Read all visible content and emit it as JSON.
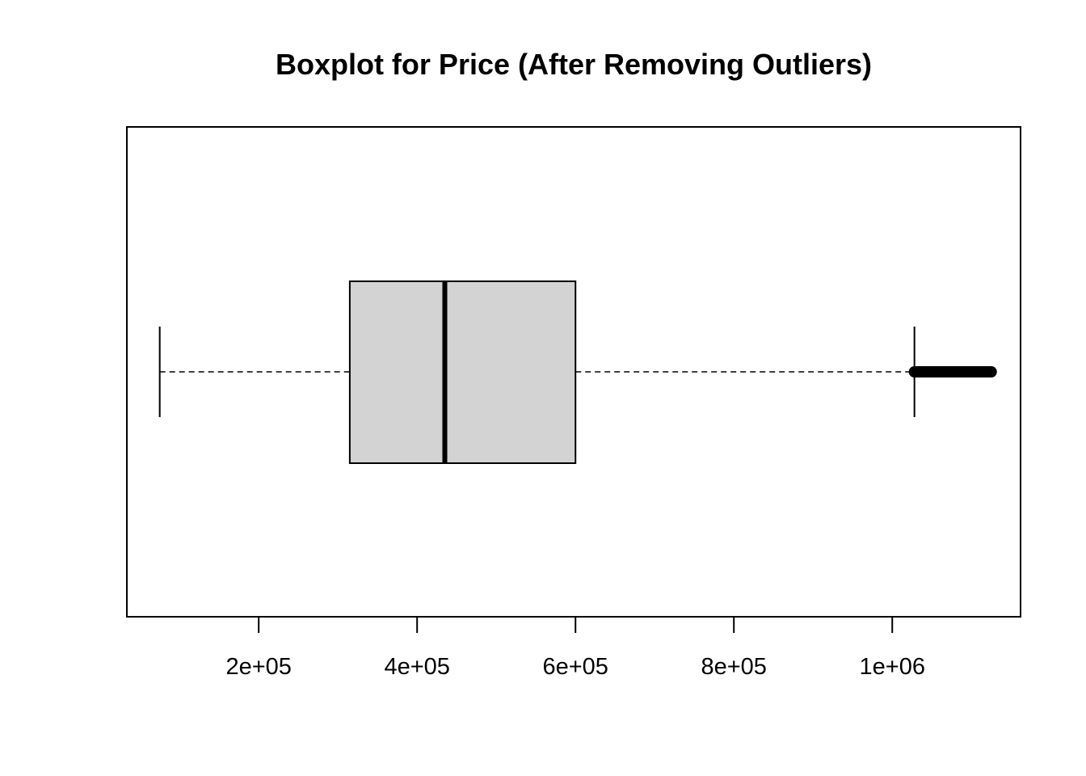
{
  "chart_data": {
    "type": "boxplot",
    "orientation": "horizontal",
    "title": "Boxplot for Price (After Removing Outliers)",
    "xlabel": "",
    "ylabel": "",
    "xlim": [
      33500,
      1162000
    ],
    "ticks": [
      {
        "value": 200000,
        "label": "2e+05"
      },
      {
        "value": 400000,
        "label": "4e+05"
      },
      {
        "value": 600000,
        "label": "6e+05"
      },
      {
        "value": 800000,
        "label": "8e+05"
      },
      {
        "value": 1000000,
        "label": "1e+06"
      }
    ],
    "box": {
      "whisker_low": 75000,
      "q1": 315000,
      "median": 435000,
      "q3": 600000,
      "whisker_high": 1028000
    },
    "outliers_range": [
      1028000,
      1125000
    ],
    "colors": {
      "box_fill": "#d3d3d3",
      "stroke": "#000000",
      "background": "#ffffff"
    },
    "grid": false,
    "legend": "none"
  }
}
